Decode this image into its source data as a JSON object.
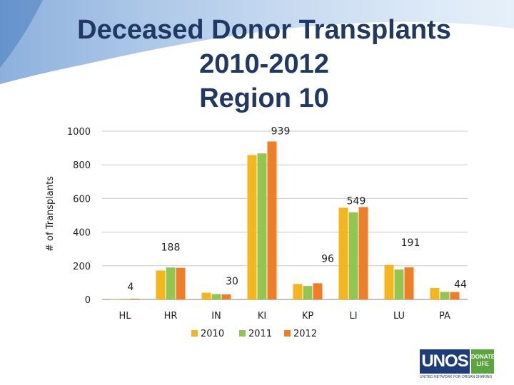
{
  "chart_data": {
    "type": "bar",
    "title_lines": [
      "Deceased Donor Transplants",
      "2010-2012",
      "Region 10"
    ],
    "xlabel": "",
    "ylabel": "# of Transplants",
    "ylim": [
      0,
      1000
    ],
    "yticks": [
      0,
      200,
      400,
      600,
      800,
      1000
    ],
    "grid": true,
    "legend_position": "bottom",
    "categories": [
      "HL",
      "HR",
      "IN",
      "KI",
      "KP",
      "LI",
      "LU",
      "PA"
    ],
    "series": [
      {
        "name": "2010",
        "color": "#f5b51c",
        "values": [
          2,
          172,
          40,
          858,
          92,
          545,
          205,
          68
        ]
      },
      {
        "name": "2011",
        "color": "#92c650",
        "values": [
          3,
          190,
          32,
          868,
          80,
          518,
          178,
          45
        ]
      },
      {
        "name": "2012",
        "color": "#f07e26",
        "values": [
          4,
          188,
          30,
          939,
          96,
          549,
          191,
          44
        ]
      }
    ],
    "annotations": [
      {
        "category": "HL",
        "text": "4"
      },
      {
        "category": "HR",
        "text": "188"
      },
      {
        "category": "IN",
        "text": "30"
      },
      {
        "category": "KI",
        "text": "939"
      },
      {
        "category": "KP",
        "text": "96"
      },
      {
        "category": "LI",
        "text": "549"
      },
      {
        "category": "LU",
        "text": "191"
      },
      {
        "category": "PA",
        "text": "44"
      }
    ]
  },
  "logo": {
    "main": "UNOS",
    "side_line1": "DONATE",
    "side_line2": "LIFE",
    "subtitle": "UNITED NETWORK FOR ORGAN SHARING"
  }
}
